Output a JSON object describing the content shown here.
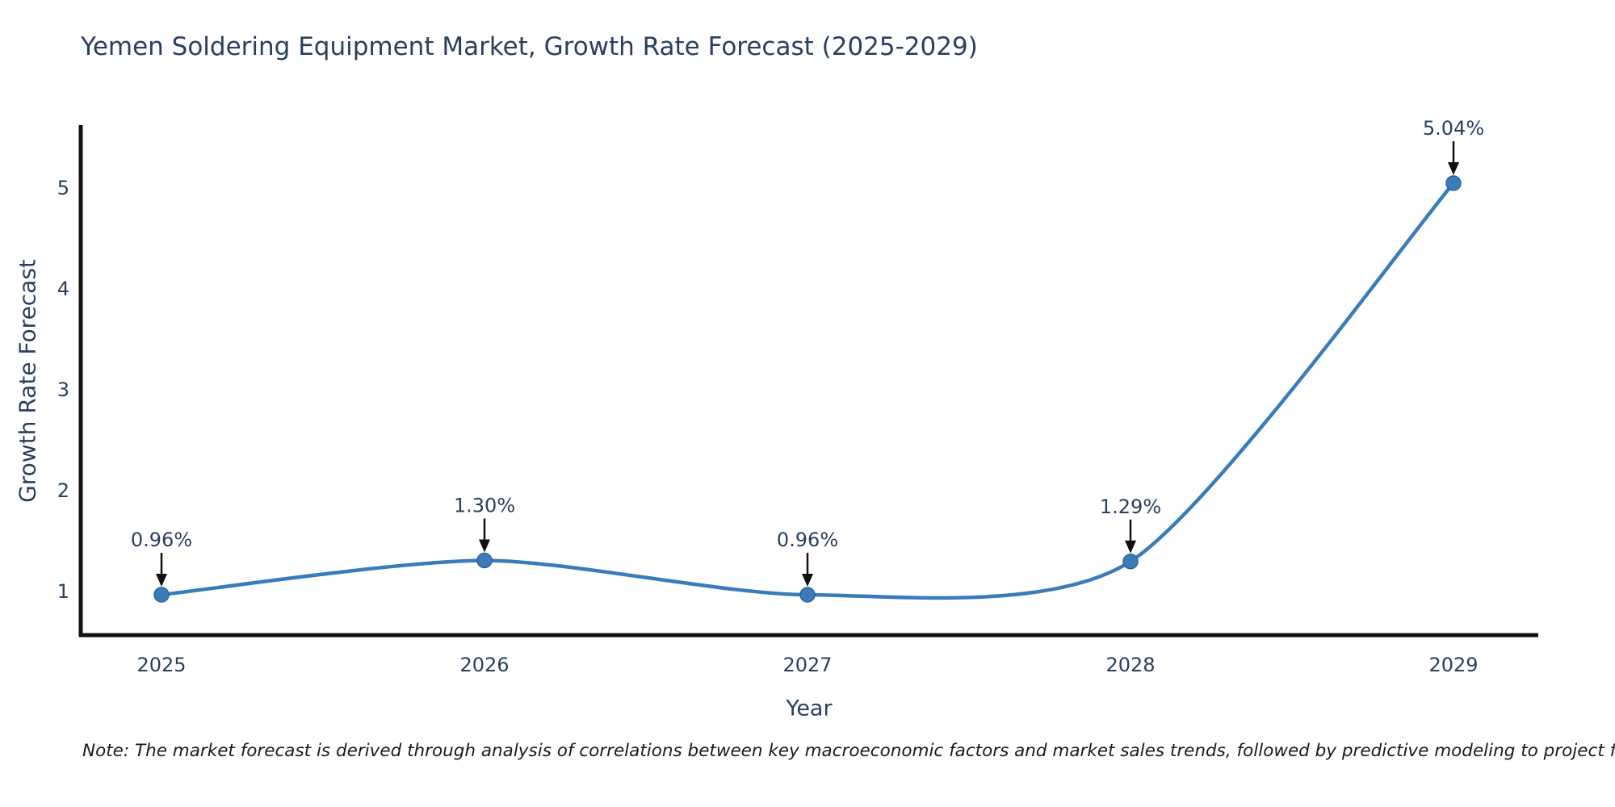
{
  "title": "Yemen Soldering Equipment Market, Growth Rate Forecast (2025-2029)",
  "note": "Note: The market forecast is derived through analysis of correlations between key macroeconomic factors and market sales trends, followed by predictive modeling to project future sales.",
  "chart_data": {
    "type": "line",
    "title": "Yemen Soldering Equipment Market, Growth Rate Forecast (2025-2029)",
    "xlabel": "Year",
    "ylabel": "Growth Rate Forecast",
    "categories": [
      "2025",
      "2026",
      "2027",
      "2028",
      "2029"
    ],
    "values": [
      0.96,
      1.3,
      0.96,
      1.29,
      5.04
    ],
    "point_labels": [
      "0.96%",
      "1.30%",
      "0.96%",
      "1.29%",
      "5.04%"
    ],
    "yticks": [
      1,
      2,
      3,
      4,
      5
    ],
    "ylim": [
      0.56,
      5.6
    ],
    "grid": false,
    "legend": "none",
    "line_shape": "spline",
    "annotations_have_arrows": true
  },
  "colors": {
    "line": "#3a7cba",
    "marker": "#3a7cba",
    "marker_edge": "#2e6496",
    "axis": "#111111",
    "tick_text": "#2a3f5f",
    "annotation_text": "#2a3f5f",
    "arrow": "#111111",
    "title_text": "#2a3f5f",
    "note_text": "#1a1a1a",
    "background": "#ffffff"
  }
}
